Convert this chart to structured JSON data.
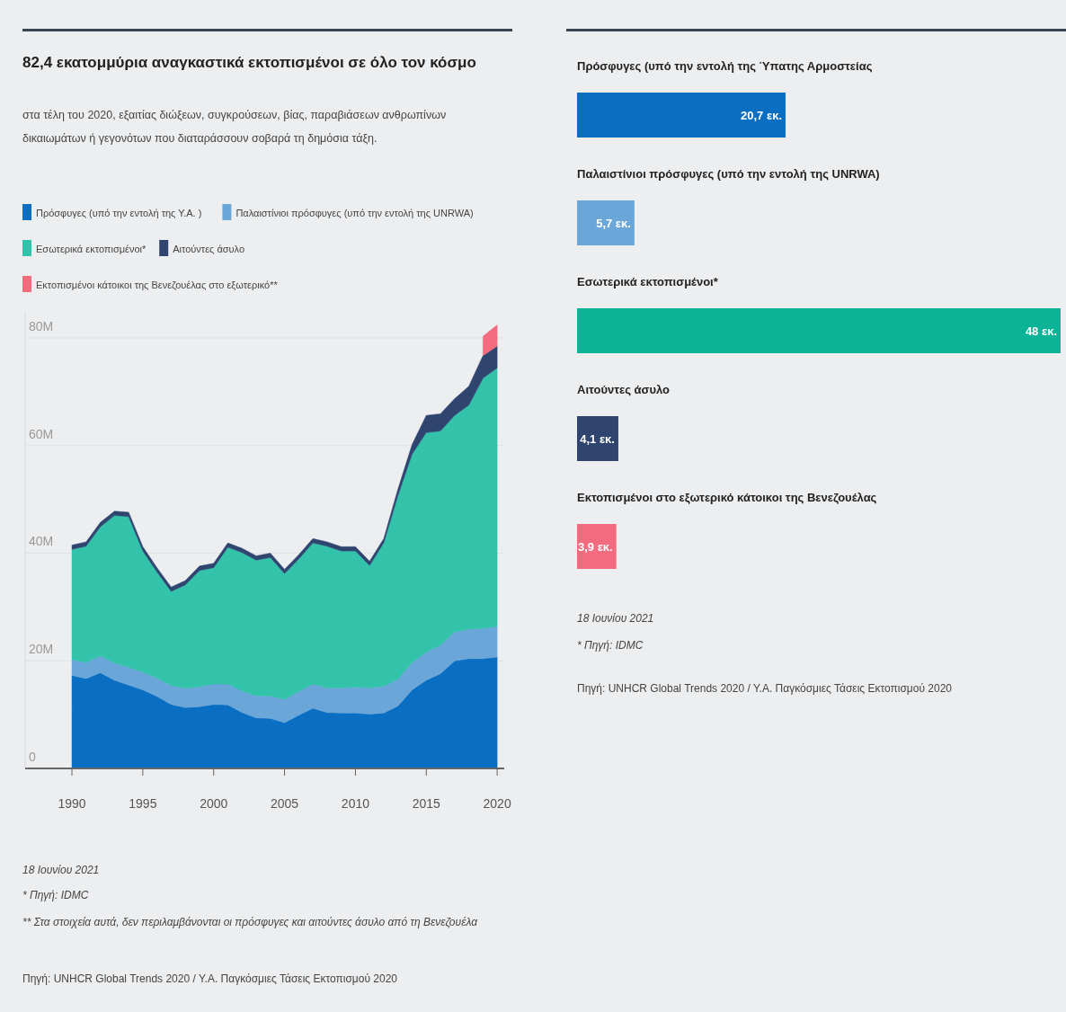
{
  "chart_data": [
    {
      "type": "area",
      "stacked": true,
      "title": "82,4 εκατομμύρια αναγκαστικά εκτοπισμένοι σε όλο τον κόσμο",
      "subtitle": "στα τέλη του 2020, εξαιτίας διώξεων, συγκρούσεων, βίας, παραβιάσεων ανθρωπίνων δικαιωμάτων ή γεγονότων που διαταράσσουν σοβαρά τη δημόσια τάξη.",
      "x": [
        1990,
        1991,
        1992,
        1993,
        1994,
        1995,
        1996,
        1997,
        1998,
        1999,
        2000,
        2001,
        2002,
        2003,
        2004,
        2005,
        2006,
        2007,
        2008,
        2009,
        2010,
        2011,
        2012,
        2013,
        2014,
        2015,
        2016,
        2017,
        2018,
        2019,
        2020
      ],
      "series": [
        {
          "name": "Πρόσφυγες (υπό την εντολή της Υ.Α. )",
          "color": "#0a6fc2",
          "values": [
            17.3,
            16.7,
            17.8,
            16.4,
            15.5,
            14.6,
            13.4,
            11.9,
            11.3,
            11.5,
            11.9,
            11.8,
            10.4,
            9.4,
            9.3,
            8.5,
            9.9,
            11.2,
            10.4,
            10.3,
            10.3,
            10.1,
            10.3,
            11.6,
            14.6,
            16.4,
            17.6,
            20.0,
            20.4,
            20.4,
            20.7
          ]
        },
        {
          "name": "Παλαιστίνιοι πρόσφυγες (υπό την εντολή της UNRWA)",
          "color": "#6aa7d8",
          "values": [
            2.9,
            3.0,
            3.1,
            3.2,
            3.3,
            3.3,
            3.4,
            3.5,
            3.6,
            3.7,
            3.8,
            3.9,
            4.0,
            4.1,
            4.2,
            4.3,
            4.4,
            4.5,
            4.6,
            4.7,
            4.8,
            4.9,
            5.0,
            5.0,
            5.1,
            5.2,
            5.3,
            5.4,
            5.5,
            5.6,
            5.7
          ]
        },
        {
          "name": "Εσωτερικά εκτοπισμένοι*",
          "color": "#32c3aa",
          "values": [
            20.5,
            21.6,
            24.0,
            27.4,
            28.0,
            22.5,
            19.7,
            17.5,
            19.2,
            21.6,
            21.6,
            25.4,
            25.7,
            25.2,
            25.7,
            23.4,
            24.6,
            26.2,
            26.3,
            25.4,
            25.3,
            22.7,
            26.6,
            34.1,
            38.7,
            40.8,
            39.8,
            40.2,
            41.6,
            46.5,
            48.0
          ]
        },
        {
          "name": "Αιτούντες άσυλο",
          "color": "#2f4570",
          "values": [
            0.8,
            0.8,
            0.8,
            0.8,
            0.8,
            0.8,
            0.8,
            0.8,
            0.8,
            0.8,
            0.8,
            0.8,
            0.8,
            0.8,
            0.8,
            0.8,
            0.8,
            0.8,
            0.8,
            0.8,
            0.8,
            0.8,
            0.8,
            1.2,
            1.8,
            3.2,
            3.2,
            3.1,
            3.5,
            4.2,
            4.1
          ]
        },
        {
          "name": "Εκτοπισμένοι κάτοικοι της Βενεζουέλας στο εξωτερικό**",
          "color": "#f36b7f",
          "values": [
            null,
            null,
            null,
            null,
            null,
            null,
            null,
            null,
            null,
            null,
            null,
            null,
            null,
            null,
            null,
            null,
            null,
            null,
            null,
            null,
            null,
            null,
            null,
            null,
            null,
            null,
            null,
            null,
            null,
            3.6,
            3.9
          ]
        }
      ],
      "xlim": [
        1986.7,
        2020.5
      ],
      "xticks": [
        1990,
        1995,
        2000,
        2005,
        2010,
        2015,
        2020
      ],
      "ylim": [
        0,
        85
      ],
      "yticks": [
        {
          "value": 0,
          "label": "0"
        },
        {
          "value": 20,
          "label": "20M"
        },
        {
          "value": 40,
          "label": "40M"
        },
        {
          "value": 60,
          "label": "60M"
        },
        {
          "value": 80,
          "label": "80M"
        }
      ],
      "grid": "y",
      "legend": "top",
      "annotations": [
        "18 Ιουνίου 2021",
        "* Πηγή: IDMC",
        "** Στα στοιχεία αυτά, δεν περιλαμβάνονται οι πρόσφυγες και αιτούντες άσυλο από τη Βενεζουέλα",
        "Πηγή: UNHCR Global Trends 2020 / Υ.Α. Παγκόσμιες Τάσεις Εκτοπισμού 2020"
      ]
    },
    {
      "type": "bar",
      "orientation": "horizontal",
      "categories": [
        "Πρόσφυγες (υπό την εντολή της Ύπατης Αρμοστείας",
        "Παλαιστίνιοι πρόσφυγες (υπό την εντολή της UNRWA)",
        "Εσωτερικά εκτοπισμένοι*",
        "Αιτούντες άσυλο",
        "Εκτοπισμένοι στο εξωτερικό κάτοικοι της Βενεζουέλας"
      ],
      "values": [
        20.7,
        5.7,
        48,
        4.1,
        3.9
      ],
      "colors": [
        "#0a6fc2",
        "#6aa7d8",
        "#0db396",
        "#2f4570",
        "#f36b7f"
      ],
      "value_labels": [
        "20,7 εκ.",
        "5,7 εκ.",
        "48 εκ.",
        "4,1 εκ.",
        "3,9 εκ."
      ],
      "xlim": [
        0,
        48
      ],
      "annotations": [
        "18 Ιουνίου 2021",
        "* Πηγή: IDMC",
        "Πηγή: UNHCR Global Trends 2020 / Υ.Α. Παγκόσμιες Τάσεις Εκτοπισμού 2020"
      ]
    }
  ]
}
